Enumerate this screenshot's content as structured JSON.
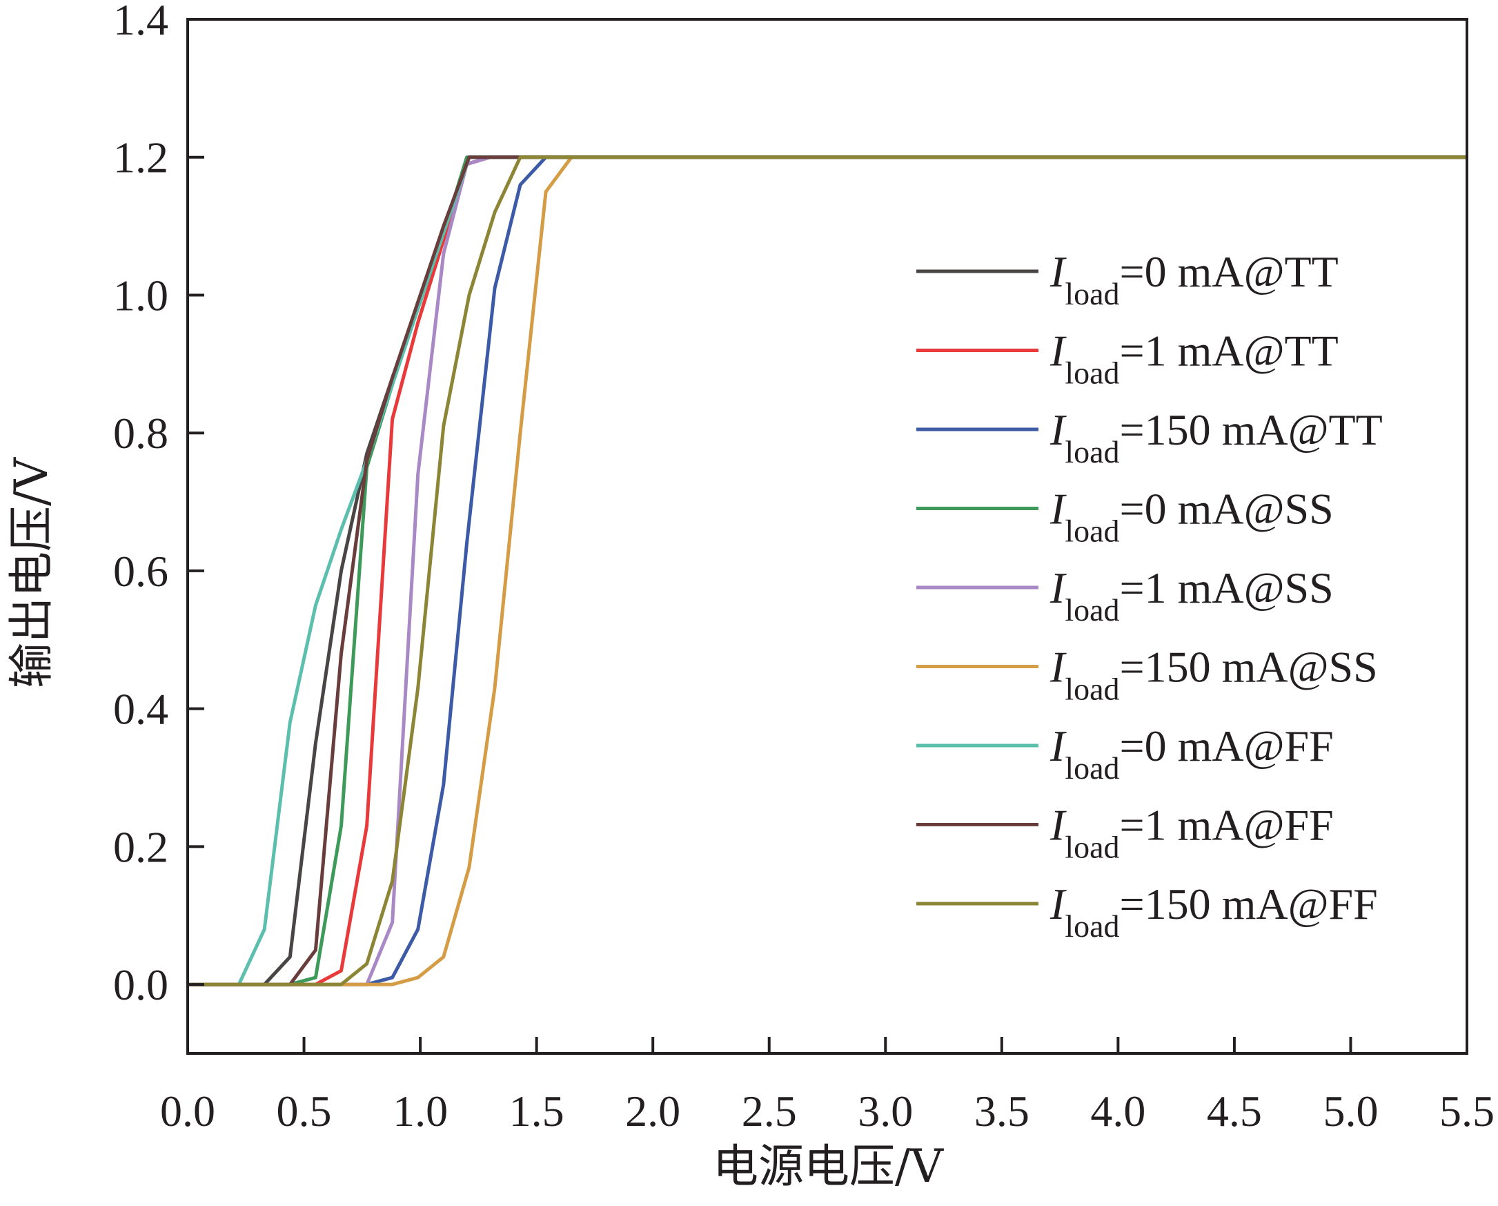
{
  "chart_data": {
    "type": "line",
    "title": "",
    "xlabel": "电源电压/V",
    "ylabel": "输出电压/V",
    "xlim": [
      0,
      5.5
    ],
    "ylim": [
      -0.1,
      1.4
    ],
    "xticks": [
      0,
      0.5,
      1.0,
      1.5,
      2.0,
      2.5,
      3.0,
      3.5,
      4.0,
      4.5,
      5.0,
      5.5
    ],
    "xtick_labels": [
      "0.0",
      "0.5",
      "1.0",
      "1.5",
      "2.0",
      "2.5",
      "3.0",
      "3.5",
      "4.0",
      "4.5",
      "5.0",
      "5.5"
    ],
    "yticks": [
      0,
      0.2,
      0.4,
      0.6,
      0.8,
      1.0,
      1.2,
      1.4
    ],
    "ytick_labels": [
      "0.0",
      "0.2",
      "0.4",
      "0.6",
      "0.8",
      "1.0",
      "1.2",
      "1.4"
    ],
    "grid": false,
    "legend_position": "right",
    "series": [
      {
        "name": "Iload=0 mA@TT",
        "label_main": "I",
        "label_sub": "load",
        "label_rest": "=0 mA@TT",
        "color": "#4a4545",
        "x": [
          0,
          0.33,
          0.44,
          0.55,
          0.66,
          0.77,
          0.88,
          1.0,
          1.1,
          1.2,
          1.3,
          1.4,
          5.5
        ],
        "y": [
          0,
          0,
          0.04,
          0.35,
          0.6,
          0.77,
          0.88,
          0.99,
          1.09,
          1.19,
          1.2,
          1.2,
          1.2
        ]
      },
      {
        "name": "Iload=1 mA@TT",
        "label_main": "I",
        "label_sub": "load",
        "label_rest": "=1 mA@TT",
        "color": "#e8393b",
        "x": [
          0,
          0.55,
          0.66,
          0.77,
          0.88,
          0.99,
          1.1,
          1.2,
          1.3,
          1.4,
          5.5
        ],
        "y": [
          0,
          0,
          0.02,
          0.23,
          0.82,
          0.96,
          1.08,
          1.19,
          1.2,
          1.2,
          1.2
        ]
      },
      {
        "name": "Iload=150 mA@TT",
        "label_main": "I",
        "label_sub": "load",
        "label_rest": "=150 mA@TT",
        "color": "#3c5aa6",
        "x": [
          0,
          0.77,
          0.88,
          0.99,
          1.1,
          1.2,
          1.32,
          1.43,
          1.54,
          1.65,
          5.5
        ],
        "y": [
          0,
          0,
          0.01,
          0.08,
          0.29,
          0.64,
          1.01,
          1.16,
          1.2,
          1.2,
          1.2
        ]
      },
      {
        "name": "Iload=0 mA@SS",
        "label_main": "I",
        "label_sub": "load",
        "label_rest": "=0 mA@SS",
        "color": "#3e9a5a",
        "x": [
          0,
          0.44,
          0.55,
          0.66,
          0.77,
          0.88,
          0.99,
          1.1,
          1.2,
          1.3,
          1.4,
          5.5
        ],
        "y": [
          0,
          0,
          0.01,
          0.23,
          0.75,
          0.87,
          0.99,
          1.09,
          1.2,
          1.2,
          1.2,
          1.2
        ]
      },
      {
        "name": "Iload=1 mA@SS",
        "label_main": "I",
        "label_sub": "load",
        "label_rest": "=1 mA@SS",
        "color": "#a889c6",
        "x": [
          0,
          0.77,
          0.88,
          0.99,
          1.1,
          1.2,
          1.3,
          1.4,
          5.5
        ],
        "y": [
          0,
          0,
          0.09,
          0.74,
          1.06,
          1.19,
          1.2,
          1.2,
          1.2
        ]
      },
      {
        "name": "Iload=150 mA@SS",
        "label_main": "I",
        "label_sub": "load",
        "label_rest": "=150 mA@SS",
        "color": "#d49c45",
        "x": [
          0,
          0.88,
          0.99,
          1.1,
          1.21,
          1.32,
          1.43,
          1.54,
          1.65,
          5.5
        ],
        "y": [
          0,
          0,
          0.01,
          0.04,
          0.17,
          0.43,
          0.8,
          1.15,
          1.2,
          1.2
        ]
      },
      {
        "name": "Iload=0 mA@FF",
        "label_main": "I",
        "label_sub": "load",
        "label_rest": "=0 mA@FF",
        "color": "#5cbfae",
        "x": [
          0,
          0.22,
          0.33,
          0.44,
          0.55,
          0.66,
          0.77,
          0.88,
          0.99,
          1.1,
          1.21,
          5.5
        ],
        "y": [
          0,
          0,
          0.08,
          0.38,
          0.55,
          0.66,
          0.76,
          0.87,
          0.98,
          1.09,
          1.2,
          1.2
        ]
      },
      {
        "name": "Iload=1 mA@FF",
        "label_main": "I",
        "label_sub": "load",
        "label_rest": "=1 mA@FF",
        "color": "#6a3d3d",
        "x": [
          0,
          0.44,
          0.55,
          0.66,
          0.77,
          0.88,
          0.99,
          1.1,
          1.21,
          1.32,
          5.5
        ],
        "y": [
          0,
          0,
          0.05,
          0.48,
          0.76,
          0.88,
          0.99,
          1.1,
          1.2,
          1.2,
          1.2
        ]
      },
      {
        "name": "Iload=150 mA@FF",
        "label_main": "I",
        "label_sub": "load",
        "label_rest": "=150 mA@FF",
        "color": "#8c8535",
        "x": [
          0,
          0.66,
          0.77,
          0.88,
          0.99,
          1.1,
          1.21,
          1.32,
          1.43,
          1.54,
          5.5
        ],
        "y": [
          0,
          0,
          0.03,
          0.15,
          0.43,
          0.81,
          1.0,
          1.12,
          1.2,
          1.2,
          1.2
        ]
      }
    ]
  }
}
